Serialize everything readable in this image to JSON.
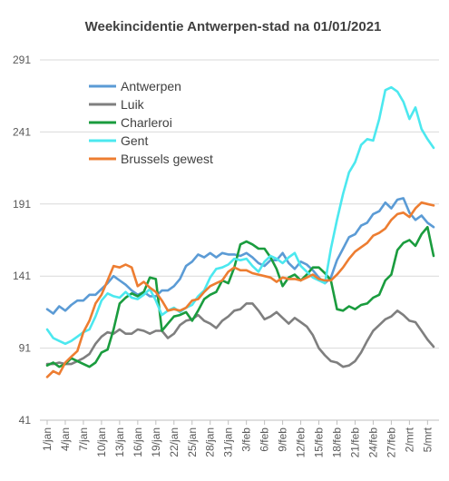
{
  "chart_data": {
    "type": "line",
    "title": "Weekincidentie  Antwerpen-stad  na 01/01/2021",
    "xlabel": "",
    "ylabel": "",
    "ylim": [
      41,
      291
    ],
    "yticks": [
      41,
      91,
      141,
      191,
      241,
      291
    ],
    "grid": true,
    "legend_position": "top-left",
    "categories": [
      "1/jan",
      "2/jan",
      "3/jan",
      "4/jan",
      "5/jan",
      "6/jan",
      "7/jan",
      "8/jan",
      "9/jan",
      "10/jan",
      "11/jan",
      "12/jan",
      "13/jan",
      "14/jan",
      "15/jan",
      "16/jan",
      "17/jan",
      "18/jan",
      "19/jan",
      "20/jan",
      "21/jan",
      "22/jan",
      "23/jan",
      "24/jan",
      "25/jan",
      "26/jan",
      "27/jan",
      "28/jan",
      "29/jan",
      "30/jan",
      "31/jan",
      "1/feb",
      "2/feb",
      "3/feb",
      "4/feb",
      "5/feb",
      "6/feb",
      "7/feb",
      "8/feb",
      "9/feb",
      "10/feb",
      "11/feb",
      "12/feb",
      "13/feb",
      "14/feb",
      "15/feb",
      "16/feb",
      "17/feb",
      "18/feb",
      "19/feb",
      "20/feb",
      "21/feb",
      "22/feb",
      "23/feb",
      "24/feb",
      "25/feb",
      "26/feb",
      "27/feb",
      "28/feb",
      "1/mrt",
      "2/mrt",
      "3/mrt",
      "4/mrt",
      "5/mrt",
      "6/mrt"
    ],
    "xtick_labels": [
      "1/jan",
      "4/jan",
      "7/jan",
      "10/jan",
      "13/jan",
      "16/jan",
      "19/jan",
      "22/jan",
      "25/jan",
      "28/jan",
      "31/jan",
      "3/feb",
      "6/feb",
      "9/feb",
      "12/feb",
      "15/feb",
      "18/feb",
      "21/feb",
      "24/feb",
      "27/feb",
      "2/mrt",
      "5/mrt"
    ],
    "series": [
      {
        "name": "Antwerpen",
        "color": "#5b9bd5",
        "values": [
          118,
          115,
          120,
          117,
          121,
          124,
          124,
          128,
          128,
          132,
          136,
          141,
          138,
          135,
          131,
          128,
          130,
          127,
          127,
          131,
          131,
          134,
          139,
          148,
          151,
          156,
          154,
          157,
          154,
          157,
          156,
          156,
          155,
          157,
          154,
          150,
          148,
          152,
          152,
          157,
          150,
          146,
          151,
          149,
          145,
          140,
          136,
          140,
          152,
          160,
          168,
          170,
          176,
          178,
          184,
          186,
          192,
          188,
          194,
          195,
          185,
          180,
          183,
          178,
          175
        ]
      },
      {
        "name": "Luik",
        "color": "#7f7f7f",
        "values": [
          80,
          80,
          81,
          80,
          80,
          82,
          84,
          87,
          94,
          99,
          102,
          101,
          104,
          101,
          101,
          104,
          103,
          101,
          103,
          103,
          98,
          101,
          107,
          110,
          111,
          114,
          110,
          108,
          105,
          110,
          113,
          117,
          118,
          122,
          122,
          117,
          111,
          113,
          116,
          112,
          108,
          112,
          109,
          106,
          100,
          91,
          86,
          82,
          81,
          78,
          79,
          82,
          88,
          96,
          103,
          107,
          111,
          113,
          117,
          114,
          110,
          109,
          103,
          97,
          92
        ]
      },
      {
        "name": "Charleroi",
        "color": "#1a9c3e",
        "values": [
          79,
          81,
          78,
          80,
          84,
          82,
          80,
          78,
          81,
          88,
          90,
          104,
          122,
          126,
          129,
          127,
          130,
          140,
          139,
          103,
          108,
          113,
          114,
          116,
          110,
          117,
          125,
          128,
          130,
          138,
          136,
          147,
          163,
          165,
          163,
          160,
          160,
          154,
          146,
          134,
          140,
          142,
          138,
          142,
          147,
          147,
          143,
          138,
          118,
          117,
          120,
          118,
          121,
          122,
          126,
          128,
          138,
          142,
          159,
          164,
          166,
          162,
          170,
          175,
          155
        ]
      },
      {
        "name": "Gent",
        "color": "#4ce8ef",
        "values": [
          104,
          98,
          96,
          94,
          96,
          99,
          102,
          104,
          113,
          124,
          129,
          127,
          126,
          130,
          126,
          125,
          128,
          132,
          124,
          114,
          117,
          119,
          116,
          119,
          121,
          127,
          131,
          140,
          146,
          147,
          149,
          153,
          152,
          153,
          148,
          144,
          151,
          155,
          153,
          150,
          154,
          157,
          148,
          144,
          140,
          138,
          136,
          160,
          180,
          198,
          213,
          220,
          232,
          236,
          235,
          250,
          270,
          272,
          269,
          262,
          250,
          258,
          243,
          236,
          230
        ]
      },
      {
        "name": "Brussels gewest",
        "color": "#ed7d31",
        "values": [
          71,
          75,
          73,
          81,
          85,
          89,
          102,
          110,
          122,
          128,
          138,
          148,
          147,
          149,
          147,
          134,
          137,
          133,
          130,
          124,
          117,
          118,
          117,
          119,
          124,
          125,
          130,
          134,
          136,
          138,
          144,
          147,
          145,
          145,
          143,
          142,
          141,
          140,
          137,
          140,
          139,
          139,
          138,
          140,
          142,
          139,
          138,
          138,
          142,
          147,
          153,
          158,
          161,
          164,
          169,
          171,
          174,
          180,
          184,
          185,
          182,
          188,
          192,
          191,
          190
        ]
      }
    ]
  }
}
